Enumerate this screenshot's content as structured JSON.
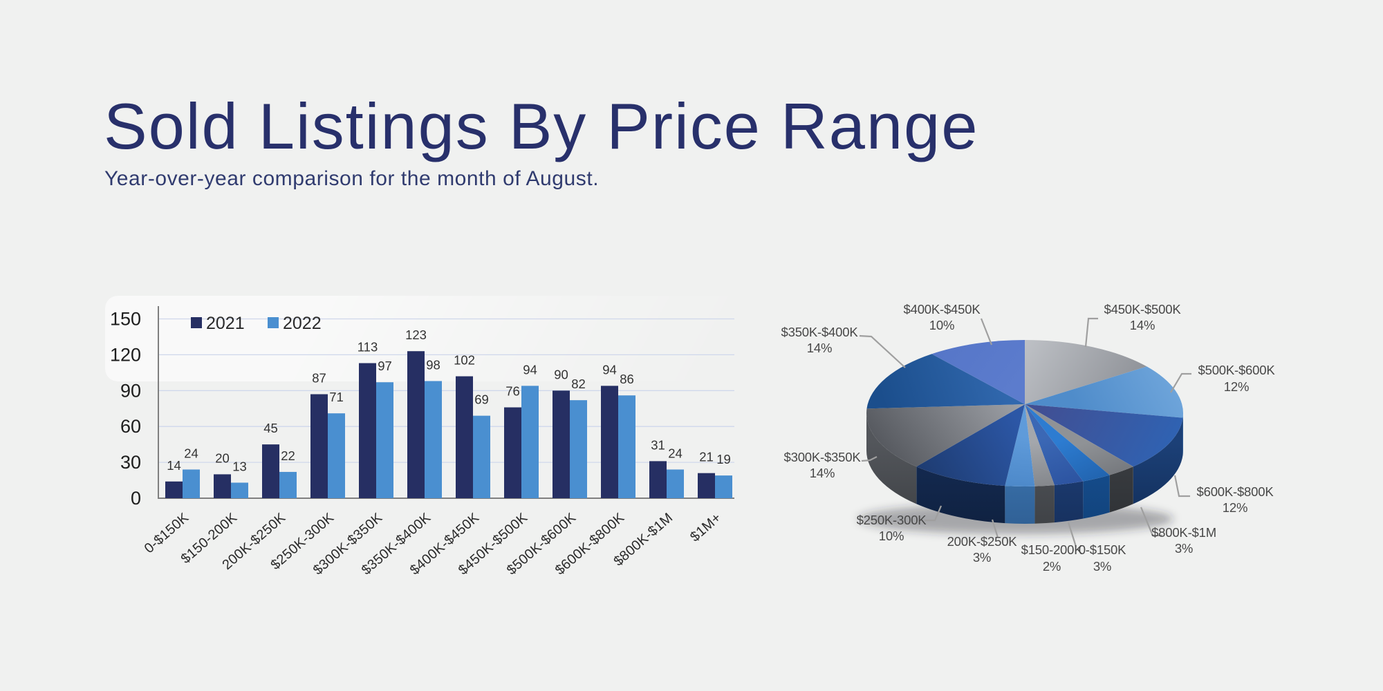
{
  "page": {
    "title": "Sold Listings By Price Range",
    "subtitle": "Year-over-year comparison for the month of August."
  },
  "colors": {
    "background": "#f0f1f0",
    "title_text": "#28306b",
    "subtitle_text": "#303b6f",
    "series_2021": "#262f63",
    "series_2022": "#4a8fd0",
    "gridline": "#cfd7eb",
    "axis_line": "#7f7f7f",
    "axis_text": "#2a2a2a",
    "value_label_text": "#333333",
    "pie_label_text": "#474747",
    "leader_line": "#9f9f9f"
  },
  "chart_data": [
    {
      "type": "bar",
      "title": "",
      "categories": [
        "0-$150K",
        "$150-200K",
        "200K-$250K",
        "$250K-300K",
        "$300K-$350K",
        "$350K-$400K",
        "$400K-$450K",
        "$450K-$500K",
        "$500K-$600K",
        "$600K-$800K",
        "$800K-$1M",
        "$1M+"
      ],
      "series": [
        {
          "name": "2021",
          "values": [
            14,
            20,
            45,
            87,
            113,
            123,
            102,
            76,
            90,
            94,
            31,
            21
          ],
          "color": "#262f63"
        },
        {
          "name": "2022",
          "values": [
            24,
            13,
            22,
            71,
            97,
            98,
            69,
            94,
            82,
            86,
            24,
            19
          ],
          "color": "#4a8fd0"
        }
      ],
      "xlabel": "",
      "ylabel": "",
      "ylim": [
        0,
        150
      ],
      "yticks": [
        0,
        30,
        60,
        90,
        120,
        150
      ],
      "grid": true,
      "legend_position": "top-inside",
      "bar_value_labels": true
    },
    {
      "type": "pie",
      "style": "3d",
      "start": "12 o'clock",
      "direction": "clockwise",
      "slices": [
        {
          "label": "$450K-$500K",
          "pct": 14,
          "pct_label": "14%",
          "label_visible": true,
          "color_top": [
            "#bdc0c5",
            "#8a8d93"
          ],
          "color_side": [
            "#777a80",
            "#5d6066"
          ]
        },
        {
          "label": "$500K-$600K",
          "pct": 12,
          "pct_label": "12%",
          "label_visible": true,
          "color_top": [
            "#75aade",
            "#4f8cca"
          ],
          "color_side": [
            "#3a6ea8",
            "#2b5584"
          ]
        },
        {
          "label": "$600K-$800K",
          "pct": 12,
          "pct_label": "12%",
          "label_visible": true,
          "color_top": [
            "#414f93",
            "#2e64b5"
          ],
          "color_side": [
            "#1c4077",
            "#0f2a52"
          ]
        },
        {
          "label": "$800K-$1M",
          "pct": 3,
          "pct_label": "3%",
          "label_visible": true,
          "color_top": [
            "#8f9296",
            "#6f7277"
          ],
          "color_side": [
            "#3c3f43",
            "#2b2e32"
          ]
        },
        {
          "label": "$1M+",
          "pct": 3,
          "pct_label": "3%",
          "label_visible": false,
          "color_top": [
            "#2d7cd1",
            "#2163ae"
          ],
          "color_side": [
            "#175092",
            "#104077"
          ]
        },
        {
          "label": "0-$150K",
          "pct": 3,
          "pct_label": "3%",
          "label_visible": true,
          "color_top": [
            "#3b68b5",
            "#2c53a0"
          ],
          "color_side": [
            "#1e3f78",
            "#152e59"
          ]
        },
        {
          "label": "$150-200K",
          "pct": 2,
          "pct_label": "2%",
          "label_visible": true,
          "color_top": [
            "#a4a7ac",
            "#84878c"
          ],
          "color_side": [
            "#515459",
            "#3b3e42"
          ]
        },
        {
          "label": "200K-$250K",
          "pct": 3,
          "pct_label": "3%",
          "label_visible": true,
          "color_top": [
            "#5f9bda",
            "#4b87c8"
          ],
          "color_side": [
            "#3d77b2",
            "#2d5b8f"
          ]
        },
        {
          "label": "$250K-300K",
          "pct": 10,
          "pct_label": "10%",
          "label_visible": true,
          "color_top": [
            "#1d3a6e",
            "#2c57a6"
          ],
          "color_side": [
            "#152c55",
            "#0e1f3c"
          ]
        },
        {
          "label": "$300K-$350K",
          "pct": 14,
          "pct_label": "14%",
          "label_visible": true,
          "color_top": [
            "#54575d",
            "#a0a3a9"
          ],
          "color_side": [
            "#53565b",
            "#383b3f"
          ]
        },
        {
          "label": "$350K-$400K",
          "pct": 14,
          "pct_label": "14%",
          "label_visible": true,
          "color_top": [
            "#1b4e8c",
            "#3168ae"
          ],
          "color_side": [
            "#123a66",
            "#0d2c4e"
          ]
        },
        {
          "label": "$400K-$450K",
          "pct": 10,
          "pct_label": "10%",
          "label_visible": true,
          "color_top": [
            "#5676c8",
            "#5c7ccd"
          ],
          "color_side": [
            "#3b57a0",
            "#2f4787"
          ]
        }
      ]
    }
  ]
}
